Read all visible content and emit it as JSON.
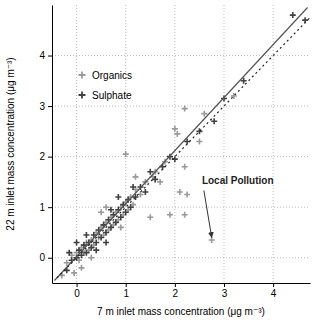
{
  "chart_data": {
    "type": "scatter",
    "x_label": "7 m inlet mass concentration (μg m⁻³)",
    "y_label": "22 m inlet mass concentration (μg m⁻³)",
    "xlim": [
      -0.5,
      4.75
    ],
    "ylim": [
      -0.5,
      5.0
    ],
    "xticks": [
      0,
      1,
      2,
      3,
      4
    ],
    "yticks": [
      0,
      1,
      2,
      3,
      4
    ],
    "grid": true,
    "legend": "upper left",
    "series": [
      {
        "name": "Organics",
        "color": "#9a9a9a",
        "marker": "plus",
        "x": [
          -0.3,
          -0.2,
          -0.1,
          0,
          0.05,
          0.1,
          0.15,
          0.2,
          0.25,
          0.3,
          0.35,
          0.4,
          0.45,
          0.5,
          0.55,
          0.6,
          0.65,
          0.7,
          0.75,
          0.8,
          0.85,
          0.9,
          0.95,
          1.0,
          1.05,
          1.1,
          1.15,
          1.2,
          1.3,
          1.4,
          1.5,
          1.55,
          1.6,
          1.7,
          1.8,
          1.9,
          2.0,
          2.05,
          2.1,
          2.2,
          2.2,
          2.25,
          2.2,
          2.5,
          2.6,
          2.75,
          3.2,
          1.0,
          0.6,
          0.3,
          0.1,
          -0.05,
          0.9,
          1.2,
          0.5
        ],
        "values": [
          -0.35,
          -0.1,
          0.05,
          0.1,
          -0.05,
          0.2,
          0.1,
          0.3,
          0.15,
          0.35,
          0.25,
          0.5,
          0.4,
          0.6,
          0.45,
          0.7,
          0.55,
          0.8,
          0.65,
          0.9,
          0.75,
          1.0,
          0.85,
          1.1,
          0.95,
          1.2,
          1.05,
          1.35,
          1.25,
          1.5,
          0.8,
          1.6,
          1.7,
          1.5,
          1.9,
          0.85,
          2.55,
          2.45,
          1.3,
          2.95,
          1.8,
          1.25,
          0.85,
          2.3,
          2.85,
          0.35,
          3.2,
          2.05,
          1.0,
          0.0,
          -0.2,
          -0.3,
          0.6,
          1.6,
          0.9
        ]
      },
      {
        "name": "Sulphate",
        "color": "#404040",
        "marker": "plus",
        "x": [
          -0.2,
          -0.1,
          0,
          0.05,
          0.1,
          0.15,
          0.2,
          0.25,
          0.3,
          0.35,
          0.4,
          0.45,
          0.5,
          0.55,
          0.6,
          0.65,
          0.7,
          0.75,
          0.8,
          0.85,
          0.9,
          0.95,
          1.0,
          1.05,
          1.1,
          1.2,
          1.3,
          1.4,
          1.6,
          1.75,
          1.9,
          2.0,
          2.25,
          2.5,
          2.8,
          3.0,
          3.4,
          4.4,
          4.65,
          0.2,
          0.4,
          0.7,
          0.0,
          -0.15,
          1.15,
          0.6,
          0.85,
          1.5
        ],
        "values": [
          -0.25,
          -0.05,
          0.0,
          0.15,
          0.05,
          0.25,
          0.1,
          0.3,
          0.2,
          0.45,
          0.3,
          0.55,
          0.4,
          0.65,
          0.5,
          0.75,
          0.6,
          0.85,
          0.7,
          0.95,
          0.8,
          1.05,
          0.9,
          1.15,
          1.0,
          1.2,
          1.4,
          1.3,
          1.55,
          1.8,
          2.0,
          1.95,
          2.3,
          2.5,
          2.7,
          3.15,
          3.5,
          4.8,
          4.7,
          0.45,
          0.15,
          0.95,
          0.3,
          0.1,
          1.4,
          0.3,
          1.2,
          1.7
        ]
      },
      {
        "type": "line",
        "color": "#555555",
        "line_style": "solid",
        "x": [
          -0.45,
          4.7
        ],
        "values": [
          -0.45,
          4.95
        ]
      },
      {
        "type": "line",
        "color": "#222222",
        "line_style": "dotted",
        "x": [
          -0.4,
          4.75
        ],
        "values": [
          -0.4,
          4.75
        ]
      }
    ],
    "annotations": [
      {
        "text": "Local Pollution",
        "x": 2.55,
        "y": 1.45,
        "arrow_x": 2.75,
        "arrow_y": 0.4
      }
    ]
  }
}
